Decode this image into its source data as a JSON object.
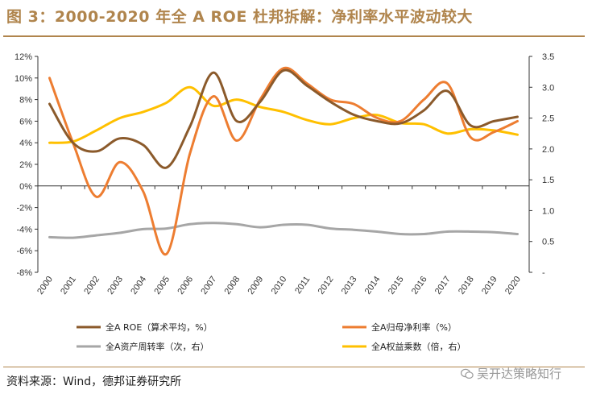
{
  "header": {
    "title": "图 3：2000-2020 年全 A ROE 杜邦拆解：净利率水平波动较大"
  },
  "footer": {
    "source": "资料来源：Wind，德邦证券研究所",
    "watermark": "吴开达策略知行"
  },
  "colors": {
    "title": "#b0854d",
    "roe": "#8b5a2b",
    "net_margin": "#ed7d31",
    "turnover": "#a6a6a6",
    "multiplier": "#ffc000"
  },
  "chart_data": {
    "type": "line",
    "title": "",
    "categories": [
      "2000",
      "2001",
      "2002",
      "2003",
      "2004",
      "2005",
      "2006",
      "2007",
      "2008",
      "2009",
      "2010",
      "2011",
      "2012",
      "2013",
      "2014",
      "2015",
      "2016",
      "2017",
      "2018",
      "2019",
      "2020"
    ],
    "left_axis": {
      "ylim": [
        -8,
        12
      ],
      "ticks": [
        -8,
        -6,
        -4,
        -2,
        0,
        2,
        4,
        6,
        8,
        10,
        12
      ],
      "tick_labels": [
        "-8%",
        "-6%",
        "-4%",
        "-2%",
        "0%",
        "2%",
        "4%",
        "6%",
        "8%",
        "10%",
        "12%"
      ]
    },
    "right_axis": {
      "ylim": [
        0,
        3.5
      ],
      "ticks": [
        0,
        0.5,
        1.0,
        1.5,
        2.0,
        2.5,
        3.0,
        3.5
      ],
      "tick_labels": [
        "-",
        "0.5",
        "1.0",
        "1.5",
        "2.0",
        "2.5",
        "3.0",
        "3.5"
      ]
    },
    "series": [
      {
        "name": "全A ROE（算术平均，%）",
        "key": "roe",
        "axis": "left",
        "values": [
          7.6,
          4.0,
          3.2,
          4.4,
          3.8,
          1.7,
          5.5,
          10.5,
          6.0,
          7.8,
          10.7,
          9.3,
          7.8,
          6.6,
          6.0,
          5.8,
          7.0,
          8.8,
          5.6,
          6.0,
          6.4
        ]
      },
      {
        "name": "全A归母净利率（%）",
        "key": "net_margin",
        "axis": "left",
        "values": [
          10.0,
          4.0,
          -1.0,
          2.2,
          -0.5,
          -6.3,
          3.0,
          8.3,
          4.2,
          8.0,
          10.9,
          9.5,
          8.0,
          7.6,
          6.3,
          6.0,
          8.0,
          9.5,
          4.5,
          5.0,
          6.0
        ]
      },
      {
        "name": "全A资产周转率（次，右）",
        "key": "turnover",
        "axis": "right",
        "values": [
          0.57,
          0.56,
          0.6,
          0.64,
          0.7,
          0.71,
          0.78,
          0.8,
          0.78,
          0.73,
          0.77,
          0.77,
          0.71,
          0.69,
          0.66,
          0.62,
          0.62,
          0.66,
          0.66,
          0.65,
          0.62
        ]
      },
      {
        "name": "全A权益乘数（倍，右）",
        "key": "multiplier",
        "axis": "right",
        "values": [
          2.1,
          2.12,
          2.3,
          2.5,
          2.6,
          2.75,
          3.0,
          2.7,
          2.8,
          2.68,
          2.6,
          2.47,
          2.4,
          2.5,
          2.55,
          2.42,
          2.4,
          2.25,
          2.32,
          2.3,
          2.23
        ]
      }
    ],
    "legend": {
      "placement": "bottom",
      "order": [
        "roe",
        "net_margin",
        "turnover",
        "multiplier"
      ]
    }
  }
}
